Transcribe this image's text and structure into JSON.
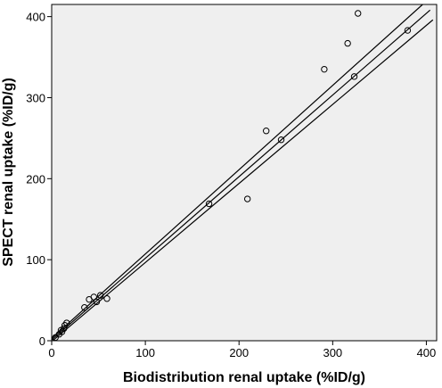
{
  "chart_data": {
    "type": "scatter",
    "x_label": "Biodistribution renal uptake (%ID/g)",
    "y_label": "SPECT renal uptake (%ID/g)",
    "xlim": [
      0,
      411
    ],
    "ylim": [
      0,
      415
    ],
    "xticks": [
      0,
      100,
      200,
      300,
      400
    ],
    "yticks": [
      0,
      100,
      200,
      300,
      400
    ],
    "series": [
      {
        "color": "#000000",
        "x": [
          327,
          316,
          291,
          323,
          380,
          229,
          245,
          209,
          168,
          59,
          52,
          45,
          40,
          48,
          35,
          16,
          13,
          11,
          8,
          4,
          14,
          10
        ],
        "values": [
          404,
          367,
          335,
          326,
          383,
          259,
          248,
          175,
          169,
          52,
          56,
          54,
          51,
          48,
          41,
          22,
          15,
          11,
          8,
          4,
          19,
          13
        ]
      }
    ],
    "lines": [
      {
        "x": [
          0,
          396
        ],
        "values": [
          3,
          415
        ]
      },
      {
        "x": [
          0,
          404
        ],
        "values": [
          1,
          408
        ]
      },
      {
        "x": [
          0,
          407
        ],
        "values": [
          -1,
          396
        ]
      }
    ]
  }
}
